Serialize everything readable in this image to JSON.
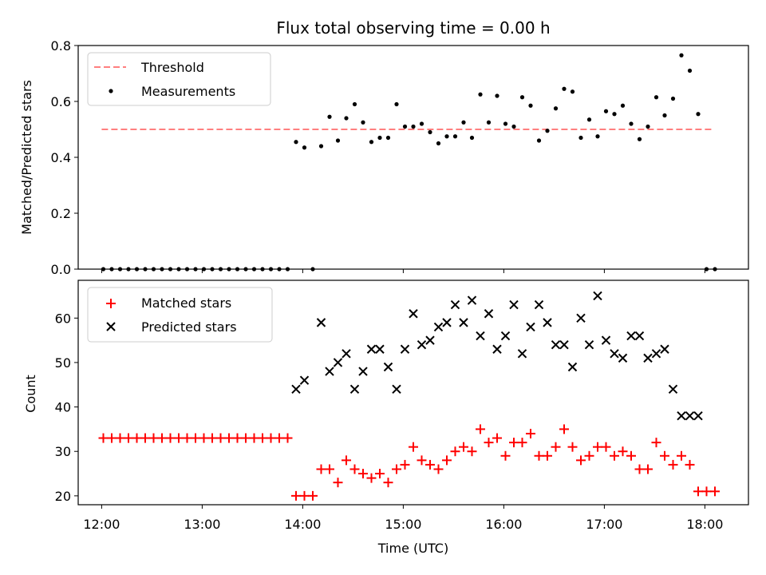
{
  "chart_data": [
    {
      "type": "scatter",
      "title": "Flux total observing time = 0.00 h",
      "xlabel": "",
      "ylabel": "Matched/Predicted stars",
      "xlim": [
        "11:46",
        "18:26"
      ],
      "ylim": [
        0,
        0.8
      ],
      "yticks": [
        "0.0",
        "0.2",
        "0.4",
        "0.6",
        "0.8"
      ],
      "grid": false,
      "legend": "upper-left",
      "series": [
        {
          "name": "Threshold",
          "style": "dashed-line",
          "color": "#ff7f7f",
          "x": [
            "12:00",
            "18:05"
          ],
          "y": [
            0.5,
            0.5
          ]
        },
        {
          "name": "Measurements",
          "style": "dot",
          "color": "#000000",
          "x": [
            "12:01",
            "12:06",
            "12:11",
            "12:16",
            "12:21",
            "12:26",
            "12:31",
            "12:36",
            "12:41",
            "12:46",
            "12:51",
            "12:56",
            "13:01",
            "13:06",
            "13:11",
            "13:16",
            "13:21",
            "13:26",
            "13:31",
            "13:36",
            "13:41",
            "13:46",
            "13:51",
            "13:56",
            "14:01",
            "14:06",
            "14:11",
            "14:16",
            "14:21",
            "14:26",
            "14:31",
            "14:36",
            "14:41",
            "14:46",
            "14:51",
            "14:56",
            "15:01",
            "15:06",
            "15:11",
            "15:16",
            "15:21",
            "15:26",
            "15:31",
            "15:36",
            "15:41",
            "15:46",
            "15:51",
            "15:56",
            "16:01",
            "16:06",
            "16:11",
            "16:16",
            "16:21",
            "16:26",
            "16:31",
            "16:36",
            "16:41",
            "16:46",
            "16:51",
            "16:56",
            "17:01",
            "17:06",
            "17:11",
            "17:16",
            "17:21",
            "17:26",
            "17:31",
            "17:36",
            "17:41",
            "17:46",
            "17:51",
            "17:56",
            "18:01",
            "18:06"
          ],
          "y": [
            0,
            0,
            0,
            0,
            0,
            0,
            0,
            0,
            0,
            0,
            0,
            0,
            0,
            0,
            0,
            0,
            0,
            0,
            0,
            0,
            0,
            0,
            0,
            0.455,
            0.435,
            0,
            0.44,
            0.545,
            0.46,
            0.54,
            0.59,
            0.525,
            0.455,
            0.47,
            0.47,
            0.59,
            0.51,
            0.51,
            0.52,
            0.49,
            0.45,
            0.475,
            0.475,
            0.525,
            0.47,
            0.625,
            0.525,
            0.62,
            0.52,
            0.51,
            0.615,
            0.585,
            0.46,
            0.495,
            0.575,
            0.645,
            0.635,
            0.47,
            0.535,
            0.475,
            0.565,
            0.555,
            0.585,
            0.52,
            0.465,
            0.51,
            0.615,
            0.55,
            0.61,
            0.765,
            0.71,
            0.555,
            0,
            0
          ]
        }
      ]
    },
    {
      "type": "scatter",
      "title": "",
      "xlabel": "Time (UTC)",
      "ylabel": "Count",
      "xlim": [
        "11:46",
        "18:26"
      ],
      "ylim": [
        18,
        68.5
      ],
      "yticks": [
        "20",
        "30",
        "40",
        "50",
        "60"
      ],
      "xticks": [
        "12:00",
        "13:00",
        "14:00",
        "15:00",
        "16:00",
        "17:00",
        "18:00"
      ],
      "grid": false,
      "legend": "upper-left",
      "series": [
        {
          "name": "Matched stars",
          "style": "plus",
          "color": "#ff0000",
          "x": [
            "12:01",
            "12:06",
            "12:11",
            "12:16",
            "12:21",
            "12:26",
            "12:31",
            "12:36",
            "12:41",
            "12:46",
            "12:51",
            "12:56",
            "13:01",
            "13:06",
            "13:11",
            "13:16",
            "13:21",
            "13:26",
            "13:31",
            "13:36",
            "13:41",
            "13:46",
            "13:51",
            "13:56",
            "14:01",
            "14:06",
            "14:11",
            "14:16",
            "14:21",
            "14:26",
            "14:31",
            "14:36",
            "14:41",
            "14:46",
            "14:51",
            "14:56",
            "15:01",
            "15:06",
            "15:11",
            "15:16",
            "15:21",
            "15:26",
            "15:31",
            "15:36",
            "15:41",
            "15:46",
            "15:51",
            "15:56",
            "16:01",
            "16:06",
            "16:11",
            "16:16",
            "16:21",
            "16:26",
            "16:31",
            "16:36",
            "16:41",
            "16:46",
            "16:51",
            "16:56",
            "17:01",
            "17:06",
            "17:11",
            "17:16",
            "17:21",
            "17:26",
            "17:31",
            "17:36",
            "17:41",
            "17:46",
            "17:51",
            "17:56",
            "18:01",
            "18:06"
          ],
          "y": [
            33,
            33,
            33,
            33,
            33,
            33,
            33,
            33,
            33,
            33,
            33,
            33,
            33,
            33,
            33,
            33,
            33,
            33,
            33,
            33,
            33,
            33,
            33,
            20,
            20,
            20,
            26,
            26,
            23,
            28,
            26,
            25,
            24,
            25,
            23,
            26,
            27,
            31,
            28,
            27,
            26,
            28,
            30,
            31,
            30,
            35,
            32,
            33,
            29,
            32,
            32,
            34,
            29,
            29,
            31,
            35,
            31,
            28,
            29,
            31,
            31,
            29,
            30,
            29,
            26,
            26,
            32,
            29,
            27,
            29,
            27,
            21,
            21,
            21
          ]
        },
        {
          "name": "Predicted stars",
          "style": "x",
          "color": "#000000",
          "x": [
            "13:56",
            "14:01",
            "14:11",
            "14:16",
            "14:21",
            "14:26",
            "14:31",
            "14:36",
            "14:41",
            "14:46",
            "14:51",
            "14:56",
            "15:01",
            "15:06",
            "15:11",
            "15:16",
            "15:21",
            "15:26",
            "15:31",
            "15:36",
            "15:41",
            "15:46",
            "15:51",
            "15:56",
            "16:01",
            "16:06",
            "16:11",
            "16:16",
            "16:21",
            "16:26",
            "16:31",
            "16:36",
            "16:41",
            "16:46",
            "16:51",
            "16:56",
            "17:01",
            "17:06",
            "17:11",
            "17:16",
            "17:21",
            "17:26",
            "17:31",
            "17:36",
            "17:41",
            "17:46",
            "17:51",
            "17:56"
          ],
          "y": [
            44,
            46,
            59,
            48,
            50,
            52,
            44,
            48,
            53,
            53,
            49,
            44,
            53,
            61,
            54,
            55,
            58,
            59,
            63,
            59,
            64,
            56,
            61,
            53,
            56,
            63,
            52,
            58,
            63,
            59,
            54,
            54,
            49,
            60,
            54,
            65,
            55,
            52,
            51,
            56,
            56,
            51,
            52,
            53,
            44,
            38,
            38,
            38
          ]
        }
      ]
    }
  ]
}
